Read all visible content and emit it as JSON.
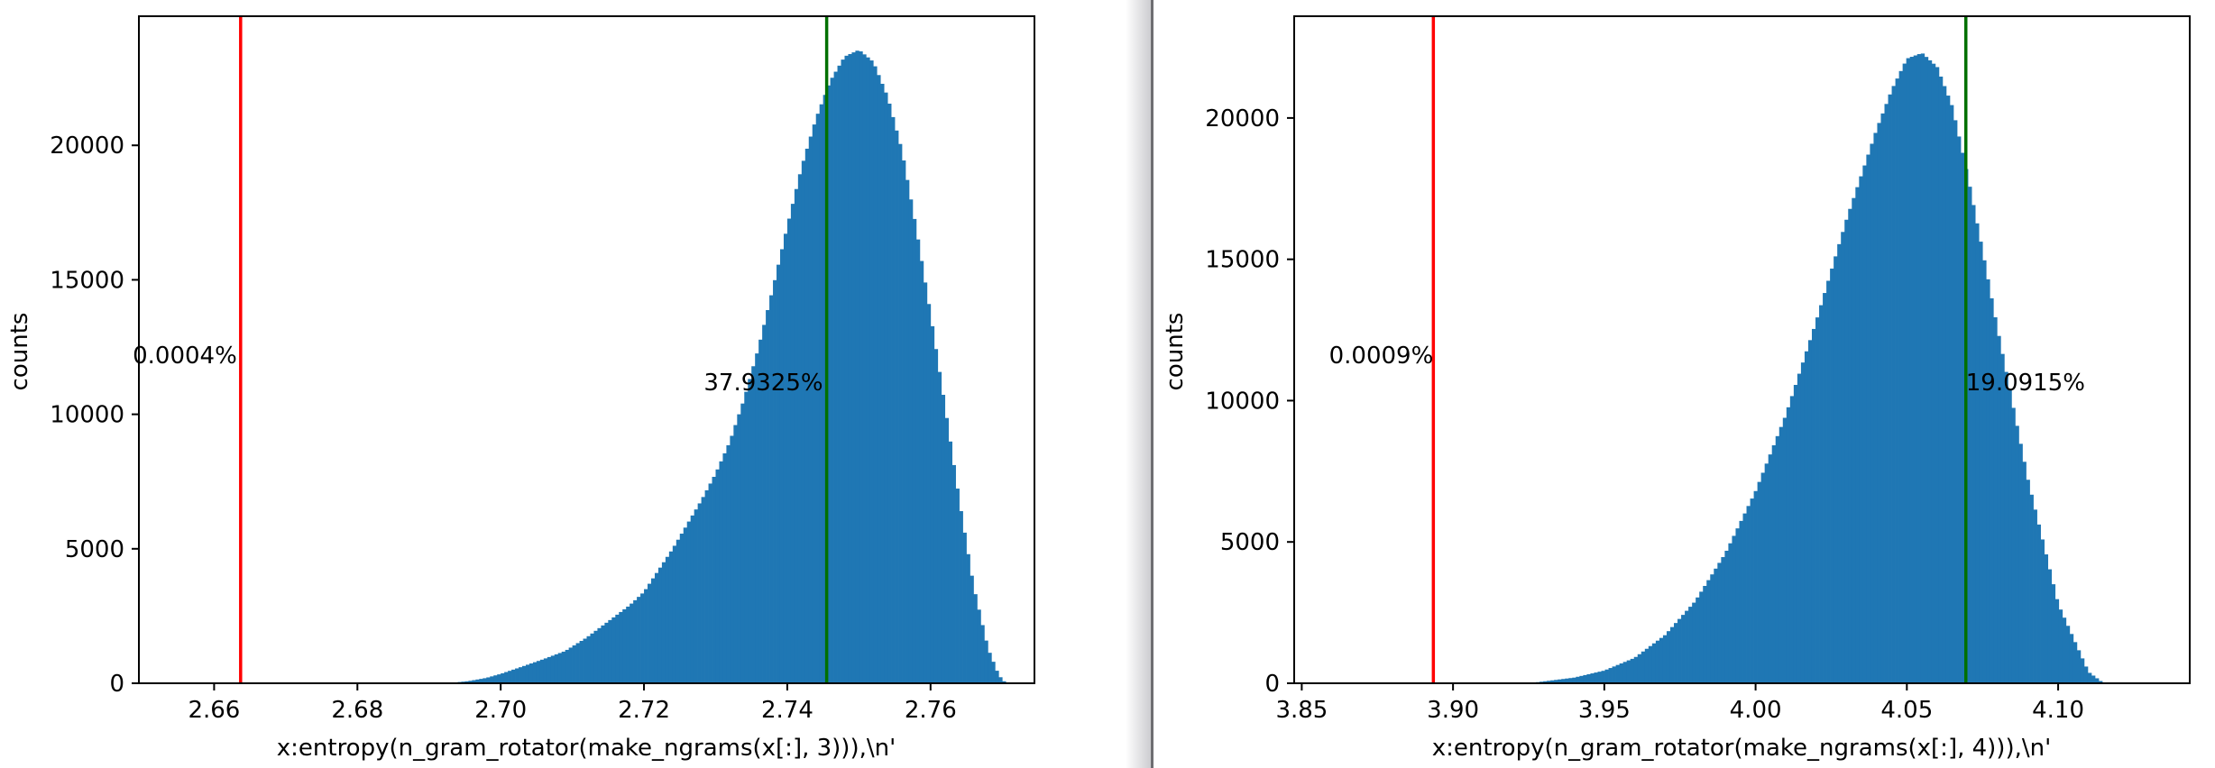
{
  "colors": {
    "bar": "#1f77b4",
    "threshold_line": "#ff0000",
    "observed_line": "#007000",
    "axes": "#000000",
    "background": "#ffffff",
    "divider_shadow": "#c8c8cc"
  },
  "chart_data": [
    {
      "type": "bar",
      "title": "",
      "xlabel": "x:entropy(n_gram_rotator(make_ngrams(x[:], 3))),\\n'",
      "ylabel": "counts",
      "xlim": [
        2.6495,
        2.7745
      ],
      "ylim": [
        0,
        24800
      ],
      "xticks": [
        2.66,
        2.68,
        2.7,
        2.72,
        2.74,
        2.76
      ],
      "xtick_labels": [
        "2.66",
        "2.68",
        "2.70",
        "2.72",
        "2.74",
        "2.76"
      ],
      "yticks": [
        0,
        5000,
        10000,
        15000,
        20000
      ],
      "ytick_labels": [
        "0",
        "5000",
        "10000",
        "15000",
        "20000"
      ],
      "bin_width": 0.0005,
      "x": [
        2.6925,
        2.6955,
        2.698,
        2.7,
        2.703,
        2.706,
        2.709,
        2.712,
        2.715,
        2.718,
        2.72,
        2.722,
        2.724,
        2.726,
        2.728,
        2.73,
        2.732,
        2.734,
        2.736,
        2.738,
        2.74,
        2.742,
        2.744,
        2.746,
        2.748,
        2.75,
        2.752,
        2.754,
        2.756,
        2.758,
        2.76,
        2.762,
        2.764,
        2.766,
        2.768,
        2.7695,
        2.7705
      ],
      "values": [
        0,
        80,
        200,
        350,
        620,
        900,
        1200,
        1700,
        2300,
        2900,
        3400,
        4200,
        5000,
        5900,
        6800,
        7800,
        9000,
        10600,
        12500,
        14700,
        17000,
        19200,
        21000,
        22400,
        23300,
        23550,
        23100,
        21800,
        19800,
        16900,
        13700,
        10300,
        6800,
        3600,
        1300,
        300,
        0
      ],
      "vlines": [
        {
          "x": 2.6637,
          "color": "#ff0000",
          "label": "0.0004%"
        },
        {
          "x": 2.7455,
          "color": "#007000",
          "label": "37.9325%"
        }
      ]
    },
    {
      "type": "bar",
      "title": "",
      "xlabel": "x:entropy(n_gram_rotator(make_ngrams(x[:], 4))),\\n'",
      "ylabel": "counts",
      "xlim": [
        3.8475,
        4.1435
      ],
      "ylim": [
        0,
        23600
      ],
      "xticks": [
        3.85,
        3.9,
        3.95,
        4.0,
        4.05,
        4.1
      ],
      "xtick_labels": [
        "3.85",
        "3.90",
        "3.95",
        "4.00",
        "4.05",
        "4.10"
      ],
      "yticks": [
        0,
        5000,
        10000,
        15000,
        20000
      ],
      "ytick_labels": [
        "0",
        "5000",
        "10000",
        "15000",
        "20000"
      ],
      "bin_width": 0.0012,
      "x": [
        3.925,
        3.94,
        3.95,
        3.96,
        3.97,
        3.98,
        3.99,
        4.0,
        4.01,
        4.02,
        4.03,
        4.04,
        4.045,
        4.05,
        4.055,
        4.06,
        4.065,
        4.07,
        4.075,
        4.08,
        4.09,
        4.1,
        4.11,
        4.115
      ],
      "values": [
        0,
        200,
        450,
        900,
        1700,
        2900,
        4600,
        6800,
        9500,
        12800,
        16400,
        19600,
        21000,
        22100,
        22300,
        21800,
        20400,
        18000,
        15300,
        12500,
        7200,
        2800,
        400,
        0
      ],
      "vlines": [
        {
          "x": 3.8935,
          "color": "#ff0000",
          "label": "0.0009%"
        },
        {
          "x": 4.0695,
          "color": "#007000",
          "label": "19.0915%"
        }
      ]
    }
  ]
}
